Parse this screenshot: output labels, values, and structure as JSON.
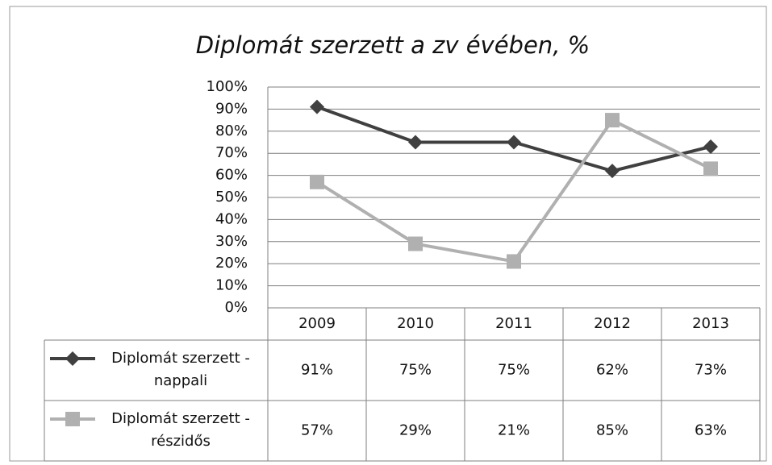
{
  "chart_data": {
    "type": "line",
    "title": "Diplomát szerzett a zv évében, %",
    "categories": [
      "2009",
      "2010",
      "2011",
      "2012",
      "2013"
    ],
    "series": [
      {
        "name": "Diplomát szerzett - nappali",
        "color": "#404040",
        "marker": "diamond",
        "values": [
          91,
          75,
          75,
          62,
          73
        ],
        "value_labels": [
          "91%",
          "75%",
          "75%",
          "62%",
          "73%"
        ]
      },
      {
        "name": "Diplomát szerzett - részidős",
        "color": "#b0b0b0",
        "marker": "square",
        "values": [
          57,
          29,
          21,
          85,
          63
        ],
        "value_labels": [
          "57%",
          "29%",
          "21%",
          "85%",
          "63%"
        ]
      }
    ],
    "ylim": [
      0,
      100
    ],
    "yticks": [
      {
        "value": 0,
        "label": "0%"
      },
      {
        "value": 10,
        "label": "10%"
      },
      {
        "value": 20,
        "label": "20%"
      },
      {
        "value": 30,
        "label": "30%"
      },
      {
        "value": 40,
        "label": "40%"
      },
      {
        "value": 50,
        "label": "50%"
      },
      {
        "value": 60,
        "label": "60%"
      },
      {
        "value": 70,
        "label": "70%"
      },
      {
        "value": 80,
        "label": "80%"
      },
      {
        "value": 90,
        "label": "90%"
      },
      {
        "value": 100,
        "label": "100%"
      }
    ],
    "grid": true
  }
}
